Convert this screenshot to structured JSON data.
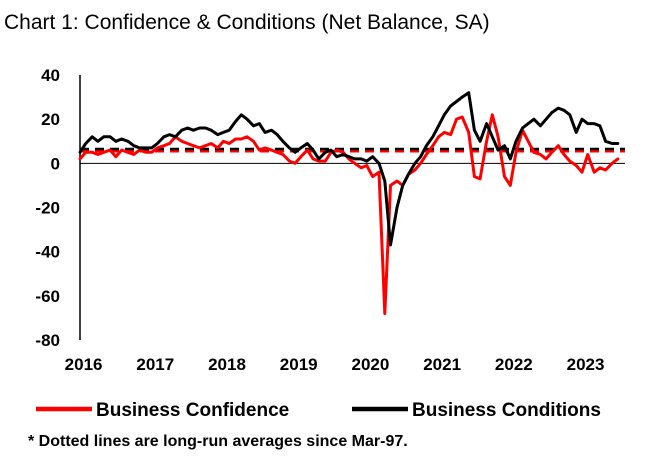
{
  "chart_data": {
    "type": "line",
    "title": "Chart 1: Confidence & Conditions (Net Balance, SA)",
    "xlabel": "",
    "ylabel": "",
    "ylim": [
      -80,
      40
    ],
    "yticks": [
      40,
      20,
      0,
      -20,
      -40,
      -60,
      -80
    ],
    "xlim": [
      2016.0,
      2023.6
    ],
    "xticks": [
      2016,
      2017,
      2018,
      2019,
      2020,
      2021,
      2022,
      2023
    ],
    "xtick_labels": [
      "2016",
      "2017",
      "2018",
      "2019",
      "2020",
      "2021",
      "2022",
      "2023"
    ],
    "legend_position": "bottom",
    "note": "* Dotted lines are long-run averages since Mar-97.",
    "series": [
      {
        "name": "Business Confidence",
        "color": "#ff0000",
        "longrun_average": 5.5,
        "x": [
          2016.0,
          2016.08,
          2016.17,
          2016.25,
          2016.33,
          2016.42,
          2016.5,
          2016.58,
          2016.67,
          2016.75,
          2016.83,
          2016.92,
          2017.0,
          2017.08,
          2017.17,
          2017.25,
          2017.33,
          2017.42,
          2017.5,
          2017.58,
          2017.67,
          2017.75,
          2017.83,
          2017.92,
          2018.0,
          2018.08,
          2018.17,
          2018.25,
          2018.33,
          2018.42,
          2018.5,
          2018.58,
          2018.67,
          2018.75,
          2018.83,
          2018.92,
          2019.0,
          2019.08,
          2019.17,
          2019.25,
          2019.33,
          2019.42,
          2019.5,
          2019.58,
          2019.67,
          2019.75,
          2019.83,
          2019.92,
          2020.0,
          2020.08,
          2020.17,
          2020.25,
          2020.33,
          2020.42,
          2020.5,
          2020.58,
          2020.67,
          2020.75,
          2020.83,
          2020.92,
          2021.0,
          2021.08,
          2021.17,
          2021.25,
          2021.33,
          2021.42,
          2021.5,
          2021.58,
          2021.67,
          2021.75,
          2021.83,
          2021.92,
          2022.0,
          2022.08,
          2022.17,
          2022.25,
          2022.33,
          2022.42,
          2022.5,
          2022.58,
          2022.67,
          2022.75,
          2022.83,
          2022.92,
          2023.0,
          2023.08,
          2023.17,
          2023.25,
          2023.33,
          2023.42,
          2023.5
        ],
        "values": [
          2,
          5,
          5,
          4,
          5,
          6,
          3,
          6,
          5,
          4,
          6,
          5,
          5,
          7,
          8,
          9,
          12,
          10,
          9,
          8,
          7,
          8,
          9,
          7,
          10,
          9,
          11,
          11,
          12,
          10,
          6,
          7,
          6,
          5,
          4,
          1,
          0,
          3,
          6,
          2,
          1,
          1,
          5,
          6,
          5,
          2,
          0,
          -2,
          -1,
          -6,
          -4,
          -68,
          -10,
          -8,
          -10,
          -5,
          -3,
          0,
          4,
          8,
          12,
          14,
          13,
          20,
          21,
          14,
          -6,
          -7,
          10,
          22,
          12,
          -6,
          -10,
          5,
          15,
          10,
          5,
          4,
          2,
          5,
          8,
          4,
          1,
          -1,
          -4,
          4,
          -4,
          -2,
          -3,
          0,
          2
        ]
      },
      {
        "name": "Business Conditions",
        "color": "#000000",
        "longrun_average": 6.5,
        "x": [
          2016.0,
          2016.08,
          2016.17,
          2016.25,
          2016.33,
          2016.42,
          2016.5,
          2016.58,
          2016.67,
          2016.75,
          2016.83,
          2016.92,
          2017.0,
          2017.08,
          2017.17,
          2017.25,
          2017.33,
          2017.42,
          2017.5,
          2017.58,
          2017.67,
          2017.75,
          2017.83,
          2017.92,
          2018.0,
          2018.08,
          2018.17,
          2018.25,
          2018.33,
          2018.42,
          2018.5,
          2018.58,
          2018.67,
          2018.75,
          2018.83,
          2018.92,
          2019.0,
          2019.08,
          2019.17,
          2019.25,
          2019.33,
          2019.42,
          2019.5,
          2019.58,
          2019.67,
          2019.75,
          2019.83,
          2019.92,
          2020.0,
          2020.08,
          2020.17,
          2020.25,
          2020.33,
          2020.42,
          2020.5,
          2020.58,
          2020.67,
          2020.75,
          2020.83,
          2020.92,
          2021.0,
          2021.08,
          2021.17,
          2021.25,
          2021.33,
          2021.42,
          2021.5,
          2021.58,
          2021.67,
          2021.75,
          2021.83,
          2021.92,
          2022.0,
          2022.08,
          2022.17,
          2022.25,
          2022.33,
          2022.42,
          2022.5,
          2022.58,
          2022.67,
          2022.75,
          2022.83,
          2022.92,
          2023.0,
          2023.08,
          2023.17,
          2023.25,
          2023.33,
          2023.42,
          2023.5
        ],
        "values": [
          5,
          9,
          12,
          10,
          12,
          12,
          10,
          11,
          10,
          8,
          7,
          7,
          7,
          9,
          12,
          13,
          12,
          15,
          16,
          15,
          16,
          16,
          15,
          13,
          14,
          15,
          19,
          22,
          20,
          17,
          18,
          14,
          15,
          13,
          10,
          7,
          5,
          7,
          9,
          6,
          2,
          5,
          6,
          3,
          4,
          3,
          2,
          2,
          1,
          3,
          0,
          -8,
          -37,
          -20,
          -10,
          -5,
          0,
          3,
          8,
          12,
          17,
          22,
          26,
          28,
          30,
          32,
          15,
          10,
          18,
          12,
          6,
          8,
          2,
          10,
          16,
          18,
          20,
          17,
          20,
          23,
          25,
          24,
          22,
          14,
          20,
          18,
          18,
          17,
          10,
          9,
          9
        ]
      }
    ]
  }
}
